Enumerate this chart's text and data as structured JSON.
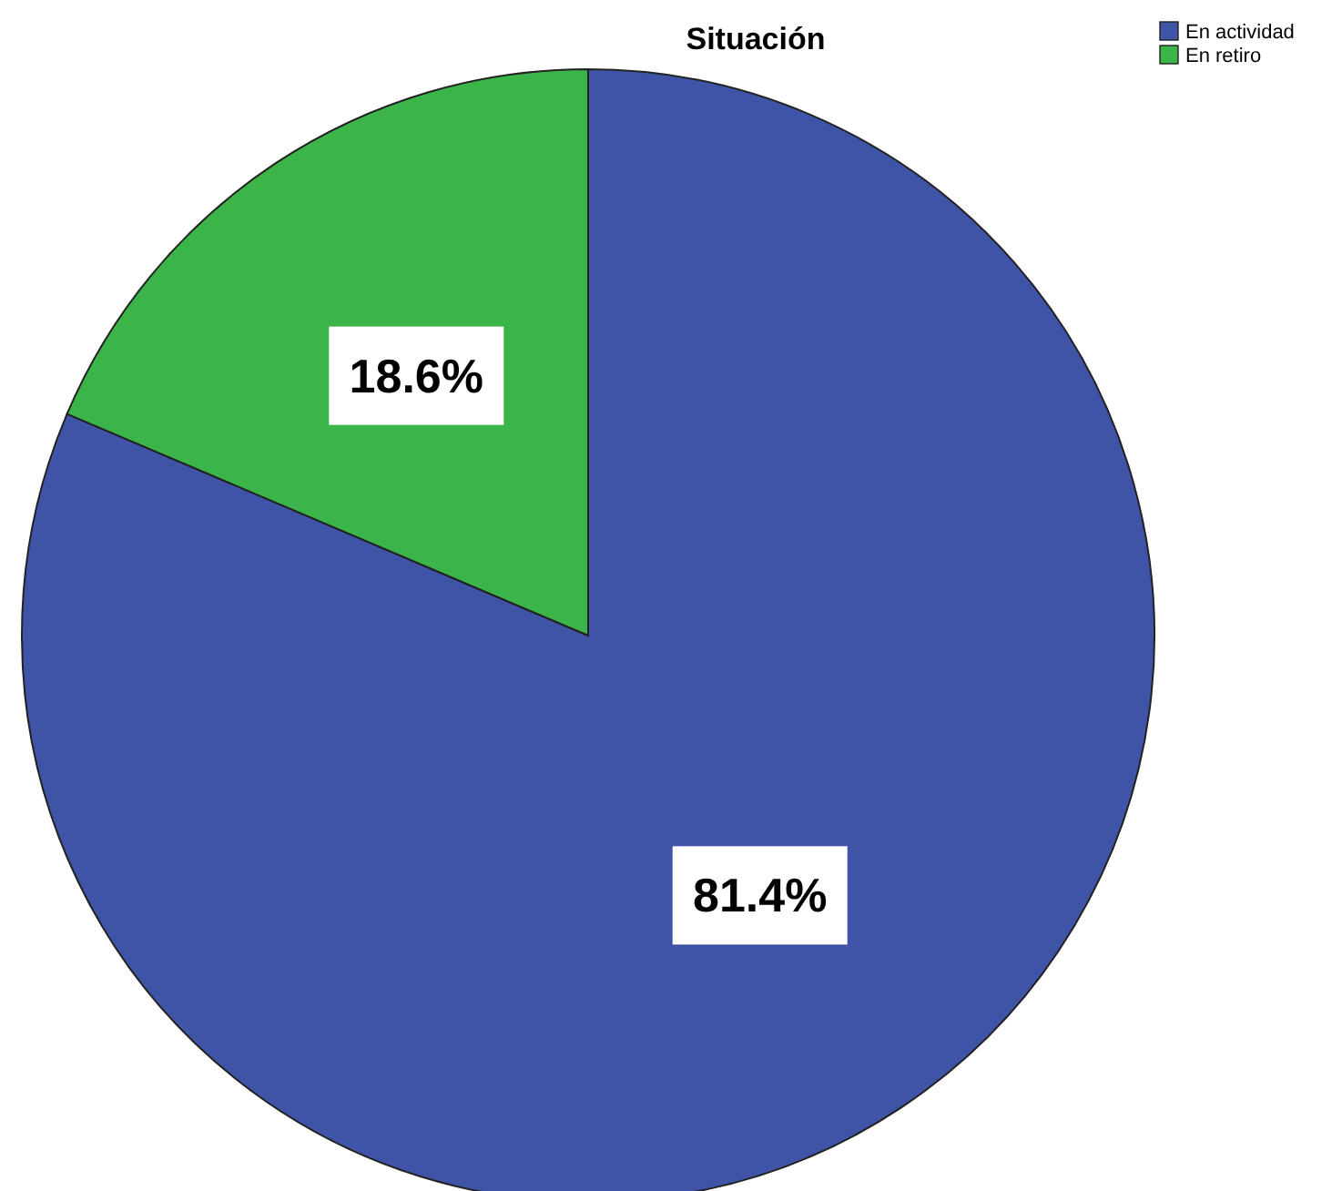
{
  "chart_data": {
    "type": "pie",
    "title": "Situación",
    "categories": [
      "En actividad",
      "En retiro"
    ],
    "values": [
      81.4,
      18.6
    ],
    "colors": [
      "#3f54a7",
      "#3bb54a"
    ],
    "value_labels": [
      "81.4%",
      "18.6%"
    ],
    "legend": "top right"
  }
}
